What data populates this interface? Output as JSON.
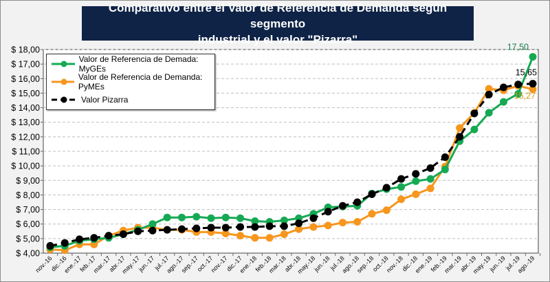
{
  "title_line1": "Comparativo entre el Valor de Referencia de Demanda según segmento",
  "title_line2": "industrial y el valor \"Pizarra\"",
  "chart_data": {
    "type": "line",
    "title": "Comparativo entre el Valor de Referencia de Demanda según segmento industrial y el valor \"Pizarra\"",
    "categories": [
      "nov.-16",
      "dic.-16",
      "ene.-17",
      "feb.-17",
      "mar.-17",
      "abr.-17",
      "may.-17",
      "jun.-17",
      "jul.-17",
      "ago.-17",
      "sep.-17",
      "oct.-17",
      "nov.-17",
      "dic.-17",
      "ene.-18",
      "feb.-18",
      "mar.-18",
      "abr.-18",
      "may.-18",
      "jun.-18",
      "jul.-18",
      "ago.-18",
      "sep.-18",
      "oct.-18",
      "nov.-18",
      "dic.-18",
      "ene.-19",
      "feb.-19",
      "mar.-19",
      "abr.-19",
      "may.-19",
      "jun.-19",
      "jul.-19",
      "ago.-19"
    ],
    "ylim": [
      4,
      18
    ],
    "yticks": [
      "$ 4,00",
      "$ 5,00",
      "$ 6,00",
      "$ 7,00",
      "$ 8,00",
      "$ 9,00",
      "$ 10,00",
      "$ 11,00",
      "$ 12,00",
      "$ 13,00",
      "$ 14,00",
      "$ 15,00",
      "$ 16,00",
      "$ 17,00",
      "$ 18,00"
    ],
    "grid": true,
    "legend_position": "top-left",
    "series": [
      {
        "name": "Valor de Referencia de Demada: MyGEs",
        "color": "#16a954",
        "dashed": false,
        "values": [
          4.4,
          4.5,
          4.85,
          4.95,
          5.05,
          5.3,
          5.6,
          6.0,
          6.45,
          6.45,
          6.5,
          6.4,
          6.45,
          6.4,
          6.2,
          6.15,
          6.25,
          6.4,
          6.7,
          7.15,
          7.2,
          7.25,
          8.1,
          8.4,
          8.55,
          8.95,
          9.1,
          9.75,
          11.7,
          12.5,
          13.65,
          14.4,
          14.95,
          17.5
        ],
        "last_label": "17,50"
      },
      {
        "name": "Valor de Referencia de Demanda: PyMEs",
        "color": "#f7961d",
        "dashed": false,
        "values": [
          4.25,
          4.2,
          4.6,
          4.6,
          5.2,
          5.55,
          5.75,
          5.75,
          5.6,
          5.6,
          5.45,
          5.45,
          5.35,
          5.2,
          5.05,
          5.05,
          5.3,
          5.65,
          5.8,
          5.9,
          6.1,
          6.15,
          6.7,
          6.95,
          7.7,
          8.05,
          8.45,
          9.95,
          12.6,
          13.65,
          15.3,
          15.2,
          15.5,
          15.27
        ],
        "last_label": "15,27"
      },
      {
        "name": "Valor Pizarra",
        "color": "#000000",
        "dashed": true,
        "values": [
          4.5,
          4.7,
          4.95,
          5.05,
          5.2,
          5.3,
          5.5,
          5.55,
          5.6,
          5.65,
          5.7,
          5.75,
          5.75,
          5.8,
          5.8,
          5.85,
          5.85,
          6.05,
          6.4,
          6.85,
          7.25,
          7.5,
          8.05,
          8.5,
          9.1,
          9.45,
          9.85,
          10.6,
          12.0,
          13.6,
          14.9,
          15.4,
          15.6,
          15.65
        ],
        "last_label": "15,65"
      }
    ]
  }
}
